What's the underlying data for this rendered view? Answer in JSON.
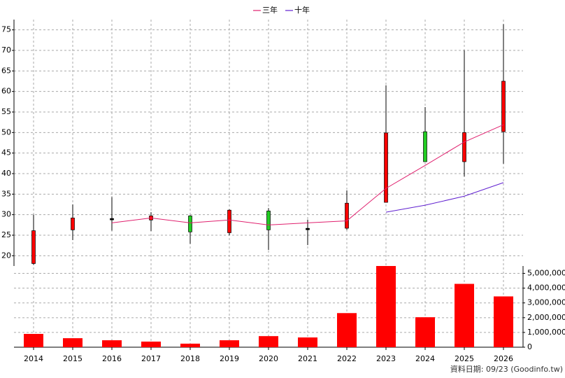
{
  "chart_data": {
    "type": "candlestick",
    "categories": [
      "2014",
      "2015",
      "2016",
      "2017",
      "2018",
      "2019",
      "2020",
      "2021",
      "2022",
      "2023",
      "2024",
      "2025",
      "2026"
    ],
    "candles": {
      "open": [
        18.1,
        26.3,
        28.9,
        28.7,
        29.7,
        25.6,
        30.9,
        26.5,
        26.7,
        33,
        50.2,
        42.9,
        50.2
      ],
      "high": [
        30,
        32.5,
        34.3,
        30.6,
        29.9,
        31.3,
        31.6,
        28.8,
        35.9,
        61.5,
        56.2,
        70,
        76.4
      ],
      "low": [
        17.8,
        23.8,
        26.1,
        26,
        22.9,
        25,
        21.4,
        22.6,
        26.3,
        33,
        42.9,
        39.3,
        42.4
      ],
      "close": [
        26.1,
        29.2,
        28.9,
        29.7,
        25.8,
        31.1,
        26.3,
        26.5,
        32.8,
        49.9,
        42.9,
        50,
        62.5
      ],
      "up_color": "#ff0000",
      "down_color": "#22cc22",
      "flat_color": "#000000"
    },
    "series": [
      {
        "name": "三年",
        "color": "#e0206e",
        "values": [
          null,
          null,
          28,
          29.2,
          28,
          28.7,
          27.5,
          28,
          28.5,
          36.4,
          42,
          47.7,
          51.9
        ]
      },
      {
        "name": "十年",
        "color": "#6020d0",
        "values": [
          null,
          null,
          null,
          null,
          null,
          null,
          null,
          null,
          null,
          30.6,
          32.3,
          34.5,
          37.8
        ]
      }
    ],
    "ylim": [
      17.5,
      77.5
    ],
    "yticks": [
      20,
      25,
      30,
      35,
      40,
      45,
      50,
      55,
      60,
      65,
      70,
      75
    ],
    "volume": {
      "color": "#ff0000",
      "values": [
        900000,
        610000,
        470000,
        380000,
        240000,
        470000,
        750000,
        660000,
        2310000,
        5500000,
        2030000,
        4290000,
        3440000
      ],
      "ylim": [
        0,
        5500000
      ],
      "yticks": [
        0,
        {
          "value": 1000000,
          "label": "1,000,000"
        },
        {
          "value": 2000000,
          "label": "2,000,000"
        },
        {
          "value": 3000000,
          "label": "3,000,000"
        },
        {
          "value": 4000000,
          "label": "4,000,000"
        },
        {
          "value": 5000000,
          "label": "5,000,000"
        }
      ]
    },
    "grid": true,
    "legend": "top",
    "footer": "資料日期: 09/23 (Goodinfo.tw)"
  }
}
